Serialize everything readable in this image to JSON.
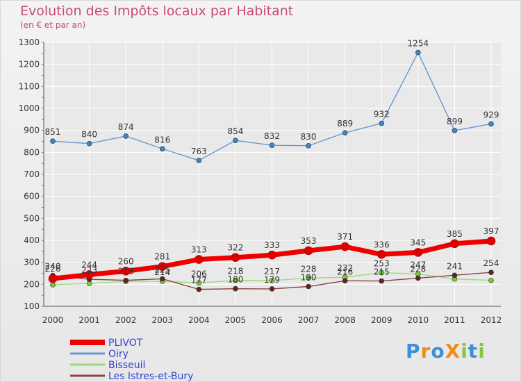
{
  "title": "Evolution des Impôts locaux par Habitant",
  "subtitle": "(en € et par an)",
  "logo": {
    "text": "ProXiti",
    "letters": [
      "P",
      "r",
      "o",
      "X",
      "i",
      "t",
      "i"
    ],
    "colors": [
      "#3a8fd6",
      "#f08c1a",
      "#3a8fd6",
      "#f08c1a",
      "#8bc43f",
      "#3a8fd6",
      "#8bc43f"
    ]
  },
  "colors": {
    "title": "#c74a74",
    "grid": "#ffffff",
    "axis_accent": "#c74a74"
  },
  "chart_data": {
    "type": "line",
    "title": "Evolution des Impôts locaux par Habitant",
    "subtitle": "(en € et par an)",
    "xlabel": "",
    "ylabel": "",
    "categories": [
      "2000",
      "2001",
      "2002",
      "2003",
      "2004",
      "2005",
      "2006",
      "2007",
      "2008",
      "2009",
      "2010",
      "2011",
      "2012"
    ],
    "ylim": [
      100,
      1300
    ],
    "yticks": [
      100,
      200,
      300,
      400,
      500,
      600,
      700,
      800,
      900,
      1000,
      1100,
      1200,
      1300
    ],
    "grid": true,
    "legend_position": "bottom-left",
    "series": [
      {
        "name": "PLIVOT",
        "color": "#ee0000",
        "marker_color": "#dd0000",
        "bold": true,
        "values": [
          226,
          244,
          260,
          281,
          313,
          322,
          333,
          353,
          371,
          336,
          345,
          385,
          397
        ]
      },
      {
        "name": "Oiry",
        "color": "#6699cc",
        "marker_color": "#3d85c6",
        "bold": false,
        "values": [
          851,
          840,
          874,
          816,
          763,
          854,
          832,
          830,
          889,
          932,
          1254,
          899,
          929
        ]
      },
      {
        "name": "Bisseuil",
        "color": "#99dd77",
        "marker_color": "#77cc33",
        "bold": false,
        "values": [
          198,
          204,
          213,
          214,
          206,
          218,
          217,
          228,
          232,
          253,
          247,
          224,
          218
        ]
      },
      {
        "name": "Les Istres-et-Bury",
        "color": "#884444",
        "marker_color": "#662222",
        "bold": false,
        "values": [
          240,
          223,
          218,
          225,
          177,
          180,
          179,
          190,
          216,
          215,
          228,
          241,
          254
        ]
      }
    ],
    "data_labels": [
      {
        "series": "PLIVOT",
        "values": [
          226,
          244,
          260,
          281,
          313,
          322,
          333,
          353,
          371,
          336,
          345,
          385,
          397
        ]
      },
      {
        "series": "Oiry",
        "values": [
          851,
          840,
          874,
          816,
          763,
          854,
          832,
          830,
          889,
          932,
          1254,
          899,
          929
        ]
      },
      {
        "series": "Bisseuil",
        "values": [
          null,
          null,
          null,
          214,
          206,
          218,
          217,
          228,
          232,
          253,
          247,
          null,
          null
        ]
      },
      {
        "series": "Les Istres-et-Bury",
        "values": [
          240,
          223,
          218,
          225,
          177,
          180,
          179,
          190,
          216,
          215,
          228,
          241,
          254
        ]
      }
    ]
  }
}
